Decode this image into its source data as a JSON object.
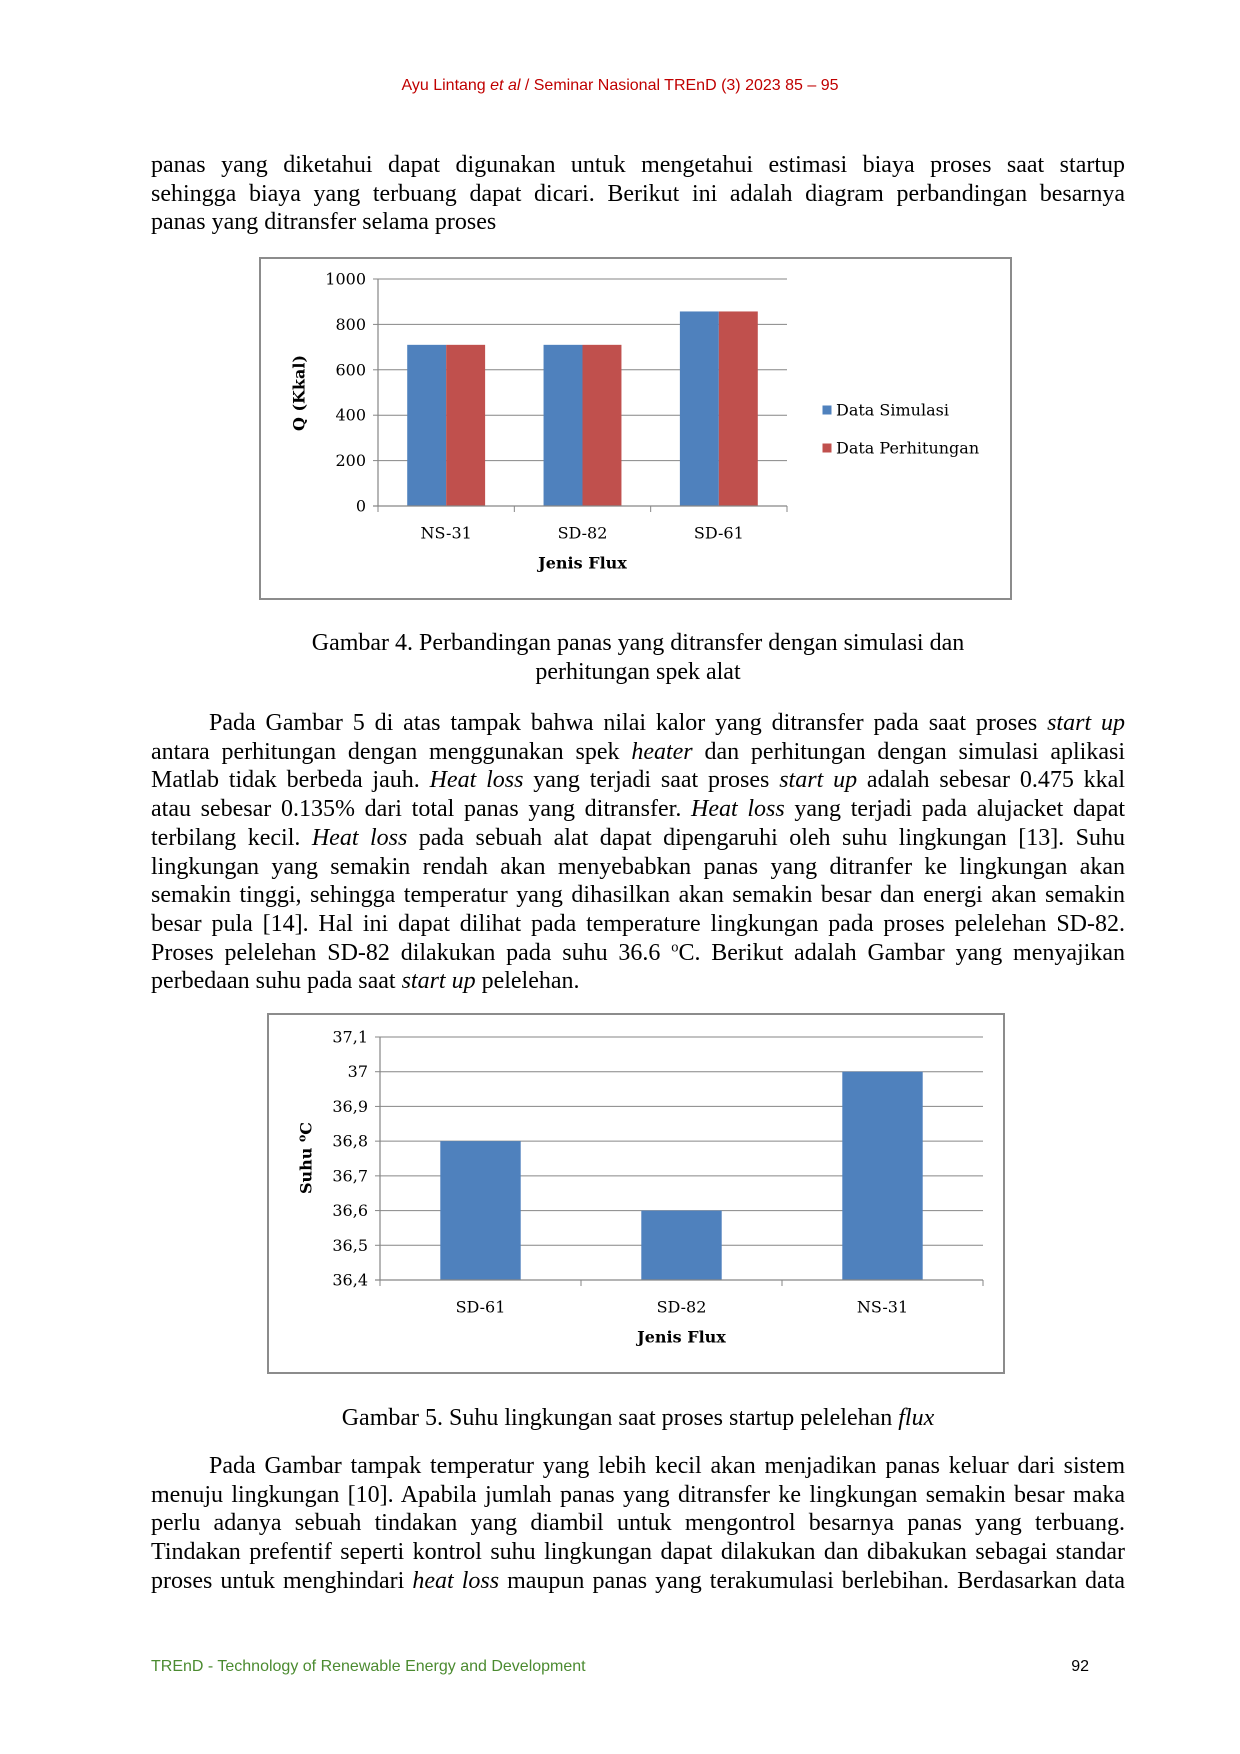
{
  "header": {
    "running_head": [
      {
        "text": "Ayu Lintang "
      },
      {
        "text": "et al",
        "italic": true
      },
      {
        "text": " / Seminar Nasional TREnD (3) 2023 85 – 95"
      }
    ]
  },
  "body": {
    "paragraphs": [
      {
        "lines": [
          [
            {
              "text": "panas yang diketahui dapat digunakan untuk mengetahui estimasi biaya proses saat startup"
            }
          ],
          [
            {
              "text": "sehingga biaya yang terbuang dapat dicari. Berikut ini adalah diagram perbandingan besarnya"
            }
          ],
          [
            {
              "text": "panas yang ditransfer selama proses"
            }
          ]
        ]
      },
      {
        "lines": [
          [
            {
              "text": "Pada Gambar 5 di atas tampak bahwa nilai kalor yang ditransfer pada saat proses "
            },
            {
              "text": "start up",
              "italic": true
            }
          ],
          [
            {
              "text": "antara perhitungan dengan menggunakan spek "
            },
            {
              "text": "heater",
              "italic": true
            },
            {
              "text": " dan perhitungan dengan simulasi aplikasi"
            }
          ],
          [
            {
              "text": "Matlab tidak berbeda jauh. "
            },
            {
              "text": "Heat loss",
              "italic": true
            },
            {
              "text": " yang terjadi saat proses "
            },
            {
              "text": "start up",
              "italic": true
            },
            {
              "text": " adalah sebesar 0.475 kkal"
            }
          ],
          [
            {
              "text": "atau sebesar 0.135% dari total panas yang ditransfer. "
            },
            {
              "text": "Heat loss",
              "italic": true
            },
            {
              "text": " yang terjadi pada alujacket dapat"
            }
          ],
          [
            {
              "text": "terbilang kecil. "
            },
            {
              "text": "Heat loss",
              "italic": true
            },
            {
              "text": " pada sebuah alat dapat dipengaruhi oleh suhu lingkungan [13]. Suhu"
            }
          ],
          [
            {
              "text": "lingkungan yang semakin rendah akan menyebabkan panas yang ditranfer ke lingkungan akan"
            }
          ],
          [
            {
              "text": "semakin tinggi, sehingga temperatur yang dihasilkan akan semakin besar dan energi akan semakin"
            }
          ],
          [
            {
              "text": "besar pula [14]. Hal ini dapat dilihat pada temperature lingkungan pada proses pelelehan SD-82."
            }
          ],
          [
            {
              "text": "Proses pelelehan SD-82 dilakukan pada suhu 36.6 "
            },
            {
              "text": "o",
              "sup": true
            },
            {
              "text": "C. Berikut adalah Gambar yang menyajikan"
            }
          ],
          [
            {
              "text": "perbedaan suhu pada saat "
            },
            {
              "text": "start up",
              "italic": true
            },
            {
              "text": " pelelehan."
            }
          ]
        ]
      },
      {
        "lines": [
          [
            {
              "text": "Pada Gambar tampak temperatur yang lebih kecil akan menjadikan panas keluar dari sistem"
            }
          ],
          [
            {
              "text": "menuju lingkungan [10]. Apabila jumlah panas yang ditransfer ke lingkungan semakin besar maka"
            }
          ],
          [
            {
              "text": "perlu adanya sebuah tindakan yang diambil untuk mengontrol besarnya panas yang terbuang."
            }
          ],
          [
            {
              "text": "Tindakan prefentif seperti kontrol suhu lingkungan dapat dilakukan dan dibakukan sebagai standar"
            }
          ],
          [
            {
              "text": "proses untuk menghindari "
            },
            {
              "text": "heat loss",
              "italic": true
            },
            {
              "text": " maupun panas yang terakumulasi berlebihan. Berdasarkan data"
            }
          ]
        ]
      }
    ]
  },
  "figure_4": {
    "caption_lines": [
      "Gambar 4. Perbandingan panas yang ditransfer dengan simulasi dan",
      "perhitungan spek alat"
    ]
  },
  "figure_5": {
    "caption": [
      {
        "text": "Gambar 5. Suhu lingkungan saat proses startup pelelehan "
      },
      {
        "text": "flux",
        "italic": true
      }
    ]
  },
  "footer": {
    "journal": "TREnD - Technology of Renewable Energy and Development",
    "page_number": "92"
  },
  "colors": {
    "running_head": "#c00000",
    "footer_journal": "#4b8b30",
    "axis": "#868686",
    "gridline": "#868686"
  },
  "chart_data": [
    {
      "type": "bar",
      "categories": [
        "NS-31",
        "SD-82",
        "SD-61"
      ],
      "series": [
        {
          "name": "Data Simulasi",
          "values": [
            710,
            710,
            857
          ],
          "color": "#4f81bd"
        },
        {
          "name": "Data Perhitungan",
          "values": [
            710,
            710,
            857
          ],
          "color": "#c0504d"
        }
      ],
      "xlabel": "Jenis Flux",
      "ylabel": "Q (Kkal)",
      "ylim": [
        0,
        1000
      ],
      "y_ticks": [
        0,
        200,
        400,
        600,
        800,
        1000
      ],
      "y_tick_labels": [
        "0",
        "200",
        "400",
        "600",
        "800",
        "1000"
      ],
      "grid": true,
      "legend": "right"
    },
    {
      "type": "bar",
      "categories": [
        "SD-61",
        "SD-82",
        "NS-31"
      ],
      "series": [
        {
          "values": [
            36.8,
            36.6,
            37
          ],
          "color": "#4f81bd"
        }
      ],
      "xlabel": "Jenis Flux",
      "ylabel": [
        {
          "text": "Suhu "
        },
        {
          "text": "o",
          "sup": true
        },
        {
          "text": "C"
        }
      ],
      "ylim": [
        36.4,
        37.1
      ],
      "y_ticks": [
        36.4,
        36.5,
        36.6,
        36.7,
        36.8,
        36.9,
        37.0,
        37.1
      ],
      "y_tick_labels": [
        "36,4",
        "36,5",
        "36,6",
        "36,7",
        "36,8",
        "36,9",
        "37",
        "37,1"
      ],
      "grid": true,
      "legend": "none"
    }
  ]
}
